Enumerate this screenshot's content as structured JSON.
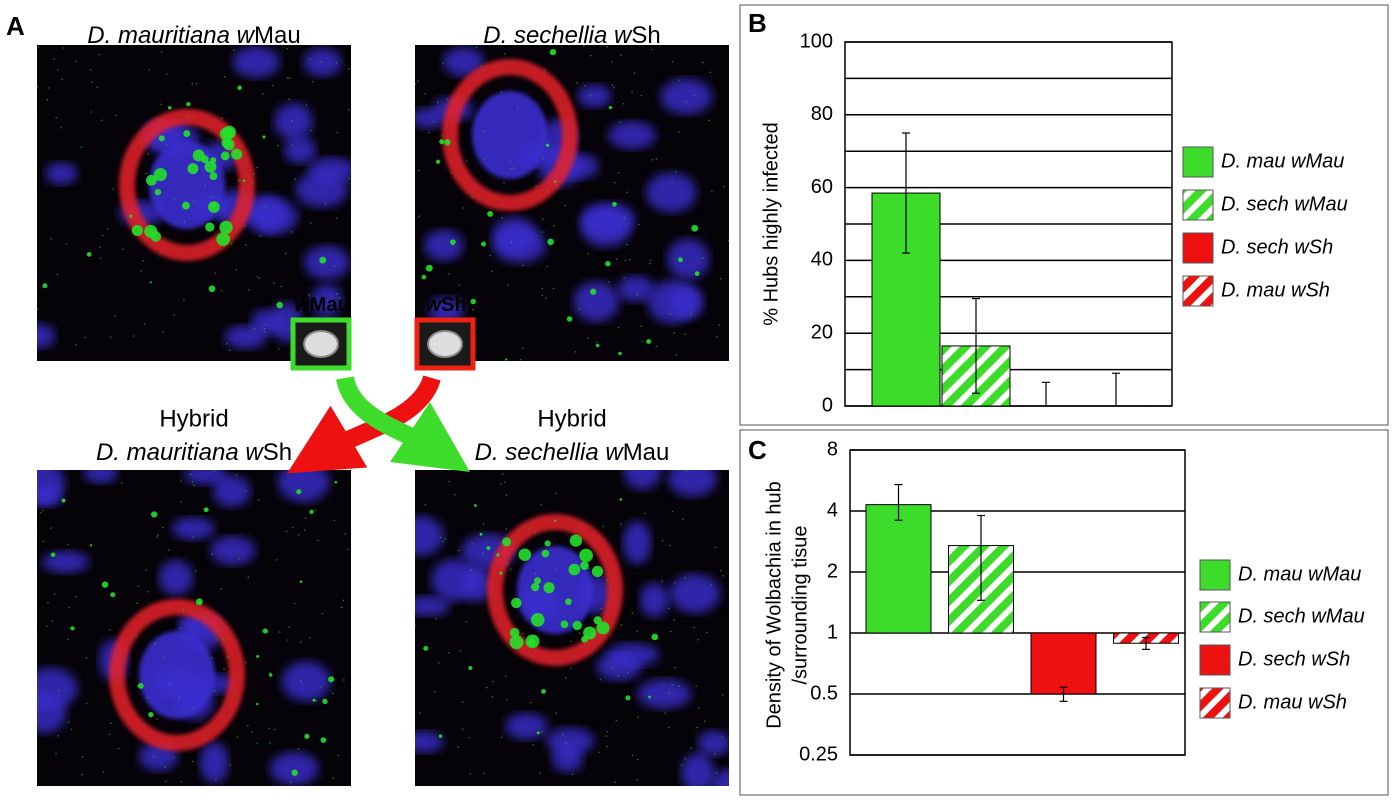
{
  "panel_a": {
    "letter": "A",
    "images": [
      {
        "title": [
          {
            "text": "D. mauritiana w",
            "italic": true
          },
          {
            "text": "Mau",
            "italic": false
          }
        ],
        "inset": [
          {
            "text": "w",
            "italic": true
          },
          {
            "text": "Mau",
            "italic": false
          }
        ],
        "inset_color": "#3ddb2a"
      },
      {
        "title": [
          {
            "text": "D. sechellia w",
            "italic": true
          },
          {
            "text": "Sh",
            "italic": false
          }
        ],
        "inset": [
          {
            "text": "w",
            "italic": true
          },
          {
            "text": "Sh",
            "italic": false
          }
        ],
        "inset_color": "#ee2211"
      },
      {
        "prefix": "Hybrid",
        "title": [
          {
            "text": "D. mauritiana w",
            "italic": true
          },
          {
            "text": "Sh",
            "italic": false
          }
        ]
      },
      {
        "prefix": "Hybrid",
        "title": [
          {
            "text": "D. sechellia w",
            "italic": true
          },
          {
            "text": "Mau",
            "italic": false
          }
        ]
      }
    ]
  },
  "chart_data": [
    {
      "panel": "B",
      "type": "bar",
      "ylabel": [
        "% Hubs highly infected"
      ],
      "ylim": [
        0,
        100
      ],
      "yticks": [
        0,
        20,
        40,
        60,
        80,
        100
      ],
      "minor_yticks": [
        10,
        30,
        50,
        70,
        90
      ],
      "grid": true,
      "series": [
        {
          "name": "D. mau wMau",
          "color": "#3ddb2a",
          "hatch": false,
          "values": [
            58.5
          ],
          "error": [
            16.5
          ]
        },
        {
          "name": "D. sech wMau",
          "color": "#3ddb2a",
          "hatch": true,
          "values": [
            16.5
          ],
          "error": [
            13
          ]
        },
        {
          "name": "D. sech wSh",
          "color": "#ee1111",
          "hatch": false,
          "values": [
            0
          ],
          "error": [
            6.5
          ]
        },
        {
          "name": "D. mau wSh",
          "color": "#ee1111",
          "hatch": true,
          "values": [
            0
          ],
          "error": [
            9
          ]
        }
      ]
    },
    {
      "panel": "C",
      "type": "bar",
      "ylabel": [
        "Density of Wolbachia in hub",
        "/surrounding tisue"
      ],
      "log_scale": true,
      "baseline": 1,
      "ylim": [
        0.25,
        8
      ],
      "yticks": [
        0.25,
        0.5,
        1,
        2,
        4,
        8
      ],
      "grid": true,
      "series": [
        {
          "name": "D. mau wMau",
          "color": "#3ddb2a",
          "hatch": false,
          "values": [
            4.3
          ],
          "error_low": [
            3.6
          ],
          "error_high": [
            5.4
          ]
        },
        {
          "name": "D. sech wMau",
          "color": "#3ddb2a",
          "hatch": true,
          "values": [
            2.7
          ],
          "error_low": [
            1.45
          ],
          "error_high": [
            3.8
          ]
        },
        {
          "name": "D. sech wSh",
          "color": "#ee1111",
          "hatch": false,
          "values": [
            0.5
          ],
          "error_low": [
            0.46
          ],
          "error_high": [
            0.54
          ]
        },
        {
          "name": "D. mau wSh",
          "color": "#ee1111",
          "hatch": true,
          "values": [
            0.89
          ],
          "error_low": [
            0.83
          ],
          "error_high": [
            0.95
          ]
        }
      ]
    }
  ]
}
